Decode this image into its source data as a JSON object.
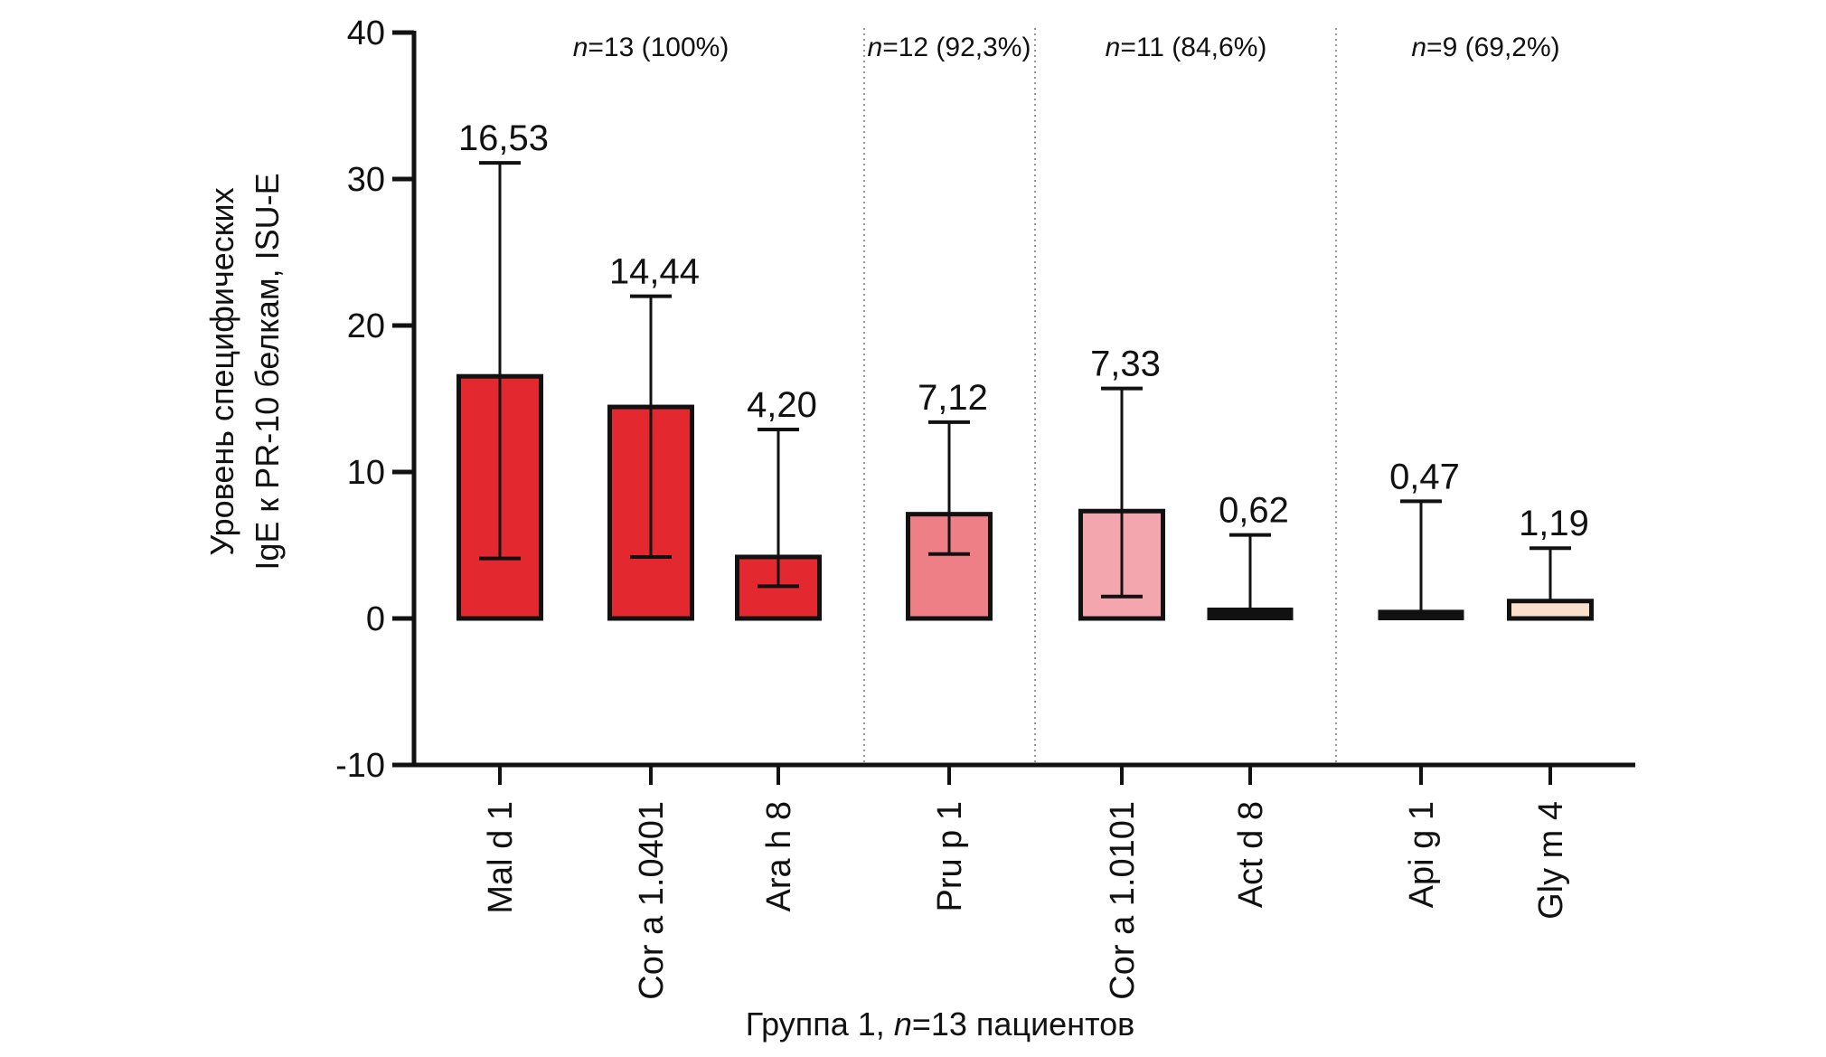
{
  "chart_data": {
    "type": "bar",
    "ylabel_lines": [
      "Уровень специфических",
      "IgE к PR-10 белкам, ISU-E"
    ],
    "xlabel": {
      "prefix": "Группа 1, ",
      "italic": "n",
      "suffix": "=13 пациентов"
    },
    "ylim": [
      -10,
      40
    ],
    "yticks": [
      40,
      30,
      20,
      10,
      0,
      -10
    ],
    "categories": [
      "Mal d 1",
      "Cor a 1.0401",
      "Ara h 8",
      "Pru p 1",
      "Cor a 1.0101",
      "Act d 8",
      "Api g 1",
      "Gly m 4"
    ],
    "values": [
      16.53,
      14.44,
      4.2,
      7.12,
      7.33,
      0.62,
      0.47,
      1.19
    ],
    "value_labels": [
      "16,53",
      "14,44",
      "4,20",
      "7,12",
      "7,33",
      "0,62",
      "0,47",
      "1,19"
    ],
    "error_upper": [
      31.1,
      22.0,
      12.9,
      13.4,
      15.7,
      5.7,
      8.0,
      4.8
    ],
    "error_lower": [
      4.1,
      4.2,
      2.2,
      4.4,
      1.5,
      0.0,
      0.0,
      0.0
    ],
    "bar_colors": [
      "#e3292f",
      "#e3292f",
      "#e3292f",
      "#ef7f86",
      "#f3a6ad",
      "#111111",
      "#111111",
      "#fbe1cc"
    ],
    "groups": [
      {
        "label_italic": "n",
        "label_rest": "=13 (100%)",
        "members": [
          0,
          1,
          2
        ]
      },
      {
        "label_italic": "n",
        "label_rest": "=12 (92,3%)",
        "members": [
          3
        ]
      },
      {
        "label_italic": "n",
        "label_rest": "=11 (84,6%)",
        "members": [
          4,
          5
        ]
      },
      {
        "label_italic": "n",
        "label_rest": "=9 (69,2%)",
        "members": [
          6,
          7
        ]
      }
    ],
    "grid": false,
    "legend": "none"
  }
}
